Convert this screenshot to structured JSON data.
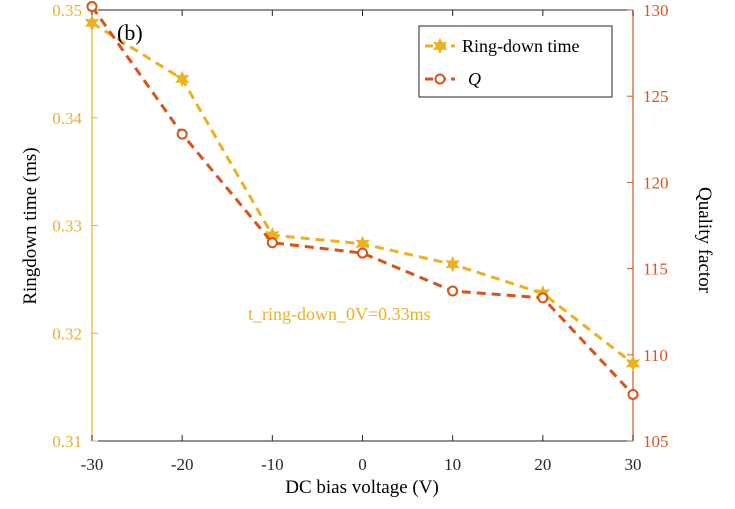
{
  "chart_data": {
    "type": "line",
    "panel_label": "(b)",
    "xlabel": "DC bias voltage (V)",
    "ylabel_left": "Ringdown time (ms)",
    "ylabel_right": "Quality factor",
    "xlim": [
      -30,
      30
    ],
    "ylim_left": [
      0.31,
      0.35
    ],
    "ylim_right": [
      105,
      130
    ],
    "x_ticks": [
      "-30",
      "-20",
      "-10",
      "0",
      "10",
      "20",
      "30"
    ],
    "y_ticks_left": [
      "0.31",
      "0.32",
      "0.33",
      "0.34",
      "0.35"
    ],
    "y_ticks_right": [
      "105",
      "110",
      "115",
      "120",
      "125",
      "130"
    ],
    "x": [
      -30,
      -20,
      -10,
      0,
      10,
      20,
      30
    ],
    "series": [
      {
        "name": "Ring-down time",
        "axis": "left",
        "color": "#edb120",
        "marker": "star",
        "values": [
          0.3488,
          0.3436,
          0.3291,
          0.3283,
          0.3264,
          0.3237,
          0.3172
        ]
      },
      {
        "name": "Q",
        "axis": "right",
        "color": "#d95319",
        "marker": "circle",
        "values": [
          130.2,
          122.8,
          116.5,
          115.9,
          113.7,
          113.3,
          107.7
        ]
      }
    ],
    "annotation": "t_ring-down_0V=0.33ms",
    "legend_position": "top-right",
    "grid": false
  }
}
